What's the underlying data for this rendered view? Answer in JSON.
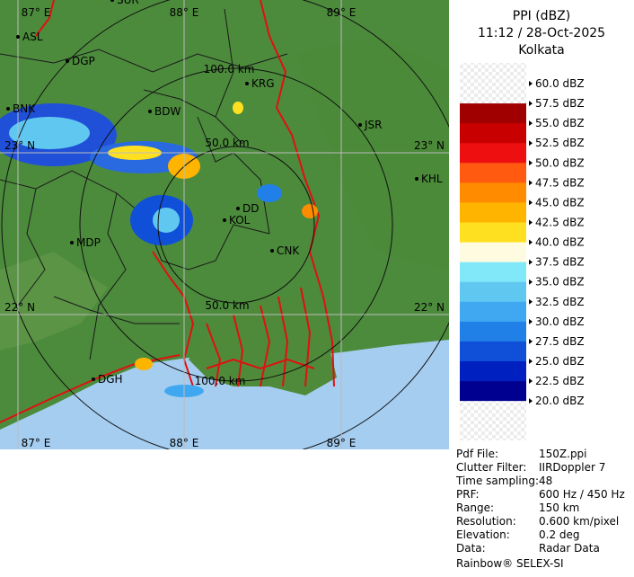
{
  "map": {
    "lon_labels_top": [
      "87° E",
      "88° E",
      "89° E"
    ],
    "lon_labels_bottom": [
      "87° E",
      "88° E",
      "89° E"
    ],
    "lat_labels_left": [
      "23° N",
      "22° N"
    ],
    "lat_labels_right": [
      "23° N",
      "22° N"
    ],
    "range_labels": [
      "100.0 km",
      "50.0 km",
      "50.0 km",
      "100.0 km"
    ],
    "cities": [
      "SUR",
      "ASL",
      "DGP",
      "KRG",
      "BDW",
      "BNK",
      "JSR",
      "KHL",
      "DD",
      "KOL",
      "CNK",
      "MDP",
      "DGH"
    ]
  },
  "legend": {
    "title": "PPI (dBZ)",
    "time": "11:12 / 28-Oct-2025",
    "site": "Kolkata",
    "levels": [
      "60.0 dBZ",
      "57.5 dBZ",
      "55.0 dBZ",
      "52.5 dBZ",
      "50.0 dBZ",
      "47.5 dBZ",
      "45.0 dBZ",
      "42.5 dBZ",
      "40.0 dBZ",
      "37.5 dBZ",
      "35.0 dBZ",
      "32.5 dBZ",
      "30.0 dBZ",
      "27.5 dBZ",
      "25.0 dBZ",
      "22.5 dBZ",
      "20.0 dBZ"
    ],
    "band_colors": [
      "#eeeeee",
      "#a00000",
      "#c80000",
      "#ee1010",
      "#ff5a10",
      "#ff8c00",
      "#ffb400",
      "#ffe020",
      "#fffbe0",
      "#80e8f8",
      "#60c8f0",
      "#40a8f0",
      "#2080e8",
      "#1050d8",
      "#0020c0",
      "#000090"
    ]
  },
  "info": {
    "rows": [
      [
        "Pdf File:",
        "150Z.ppi"
      ],
      [
        "Clutter Filter:",
        "IIRDoppler 7"
      ],
      [
        "Time sampling:",
        "48"
      ],
      [
        "PRF:",
        "600 Hz / 450 Hz"
      ],
      [
        "Range:",
        "150 km"
      ],
      [
        "Resolution:",
        "0.600 km/pixel"
      ],
      [
        "Elevation:",
        "0.2 deg"
      ],
      [
        "Data:",
        "Radar Data"
      ]
    ],
    "footer": "Rainbow® SELEX-SI"
  }
}
